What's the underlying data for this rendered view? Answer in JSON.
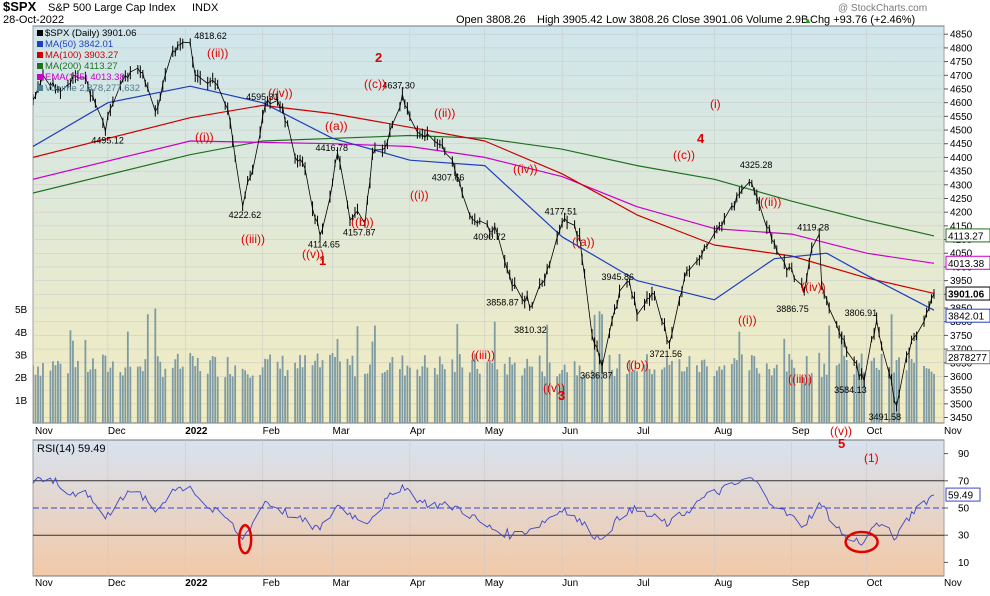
{
  "header": {
    "symbol": "$SPX",
    "name": "S&P 500 Large Cap Index",
    "exchange": "INDX",
    "date": "28-Oct-2022",
    "open": "Open 3808.26",
    "high": "High 3905.42",
    "low": "Low 3808.26",
    "close": "Close 3901.06",
    "volume": "Volume 2.9B",
    "chg": "Chg +93.76 (+2.46%)",
    "chg_arrow": "▲",
    "watermark": "@ StockCharts.com"
  },
  "legend": [
    {
      "text": "$SPX (Daily) 3901.06",
      "color": "#000000"
    },
    {
      "text": "MA(50) 3842.01",
      "color": "#1f3fbf"
    },
    {
      "text": "MA(100) 3903.27",
      "color": "#cc0000"
    },
    {
      "text": "MA(200) 4113.27",
      "color": "#207020"
    },
    {
      "text": "EMA(165) 4013.38",
      "color": "#cc00cc"
    },
    {
      "text": "Volume 2,878,277,632",
      "color": "#4a7f8f"
    }
  ],
  "rsi_legend": "RSI(14) 59.49",
  "colors": {
    "price_bg_top": "#cfe6ec",
    "price_bg_bottom": "#f3ecc0",
    "rsi_bg_top": "#d8e2ef",
    "rsi_bg_bottom": "#f2c9a8",
    "price": "#000000",
    "ma50": "#1f3fbf",
    "ma100": "#cc0000",
    "ma200": "#207020",
    "ema165": "#cc00cc",
    "volume": "#7e9aa3",
    "rsi": "#3c46c8",
    "wave": "#e00000"
  },
  "x_axis": {
    "labels": [
      "Nov",
      "Dec",
      "2022",
      "Feb",
      "Mar",
      "Apr",
      "May",
      "Jun",
      "Jul",
      "Aug",
      "Sep",
      "Oct",
      "Nov"
    ],
    "bold": [
      false,
      false,
      true,
      false,
      false,
      false,
      false,
      false,
      false,
      false,
      false,
      false,
      false
    ]
  },
  "chart_data": {
    "type": "line",
    "title": "$SPX S&P 500 Large Cap Index INDX (Daily)",
    "price_axis": {
      "ticks": [
        "4850",
        "4800",
        "4750",
        "4700",
        "4650",
        "4600",
        "4550",
        "4500",
        "4450",
        "4400",
        "4350",
        "4300",
        "4250",
        "4200",
        "4150",
        "4100",
        "4050",
        "4000",
        "3950",
        "3900",
        "3850",
        "3800",
        "3750",
        "3700",
        "3650",
        "3600",
        "3550",
        "3500",
        "3450"
      ],
      "ylim": [
        3430,
        4880
      ]
    },
    "volume_axis": {
      "ticks": [
        "5B",
        "4B",
        "3B",
        "2B",
        "1B"
      ],
      "ylim": [
        0,
        6
      ]
    },
    "rsi_axis": {
      "ticks": [
        "90",
        "70",
        "50",
        "30",
        "10"
      ],
      "ylim": [
        0,
        100
      ],
      "levels": [
        70,
        50,
        30
      ]
    },
    "price_path": [
      [
        "2021-11-01",
        4610
      ],
      [
        "2021-11-05",
        4700
      ],
      [
        "2021-11-11",
        4650
      ],
      [
        "2021-11-18",
        4700
      ],
      [
        "2021-11-22",
        4690
      ],
      [
        "2021-11-26",
        4595
      ],
      [
        "2021-11-30",
        4495.12
      ],
      [
        "2021-12-02",
        4577
      ],
      [
        "2021-12-07",
        4686
      ],
      [
        "2021-12-10",
        4712
      ],
      [
        "2021-12-15",
        4709
      ],
      [
        "2021-12-20",
        4568
      ],
      [
        "2021-12-27",
        4791
      ],
      [
        "2022-01-03",
        4818.62
      ],
      [
        "2022-01-05",
        4700
      ],
      [
        "2022-01-10",
        4670
      ],
      [
        "2022-01-14",
        4662
      ],
      [
        "2022-01-18",
        4577
      ],
      [
        "2022-01-21",
        4398
      ],
      [
        "2022-01-24",
        4222.62
      ],
      [
        "2022-01-27",
        4326
      ],
      [
        "2022-02-02",
        4589
      ],
      [
        "2022-02-04",
        4595.31
      ],
      [
        "2022-02-09",
        4587
      ],
      [
        "2022-02-14",
        4401
      ],
      [
        "2022-02-17",
        4380
      ],
      [
        "2022-02-24",
        4114.65
      ],
      [
        "2022-03-01",
        4306
      ],
      [
        "2022-03-03",
        4416.78
      ],
      [
        "2022-03-08",
        4170
      ],
      [
        "2022-03-11",
        4204
      ],
      [
        "2022-03-14",
        4157.87
      ],
      [
        "2022-03-17",
        4411
      ],
      [
        "2022-03-23",
        4456
      ],
      [
        "2022-03-29",
        4631
      ],
      [
        "2022-04-01",
        4545
      ],
      [
        "2022-04-06",
        4481
      ],
      [
        "2022-04-13",
        4446
      ],
      [
        "2022-04-18",
        4391
      ],
      [
        "2022-04-21",
        4307.66
      ],
      [
        "2022-04-26",
        4175
      ],
      [
        "2022-05-02",
        4155
      ],
      [
        "2022-05-06",
        4123
      ],
      [
        "2022-05-12",
        3930
      ],
      [
        "2022-05-20",
        3858.87
      ],
      [
        "2022-05-24",
        3941
      ],
      [
        "2022-05-31",
        4132
      ],
      [
        "2022-06-02",
        4177.51
      ],
      [
        "2022-06-08",
        4115
      ],
      [
        "2022-06-13",
        3749
      ],
      [
        "2022-06-16",
        3666
      ],
      [
        "2022-06-17",
        3636.87
      ],
      [
        "2022-06-24",
        3911
      ],
      [
        "2022-06-28",
        3945.86
      ],
      [
        "2022-07-01",
        3825
      ],
      [
        "2022-07-08",
        3899
      ],
      [
        "2022-07-14",
        3721.56
      ],
      [
        "2022-07-20",
        3959
      ],
      [
        "2022-07-28",
        4072
      ],
      [
        "2022-08-04",
        4151
      ],
      [
        "2022-08-12",
        4280
      ],
      [
        "2022-08-16",
        4305.2
      ],
      [
        "2022-08-19",
        4228
      ],
      [
        "2022-08-26",
        4057
      ],
      [
        "2022-09-06",
        3908
      ],
      [
        "2022-09-09",
        4067
      ],
      [
        "2022-09-12",
        4119.28
      ],
      [
        "2022-09-13",
        3932
      ],
      [
        "2022-09-23",
        3693
      ],
      [
        "2022-09-30",
        3584.13
      ],
      [
        "2022-10-05",
        3806.91
      ],
      [
        "2022-10-10",
        3612
      ],
      [
        "2022-10-13",
        3491.58
      ],
      [
        "2022-10-17",
        3677
      ],
      [
        "2022-10-21",
        3752
      ],
      [
        "2022-10-28",
        3901.06
      ]
    ],
    "ma50": [
      [
        "2021-11-01",
        4440
      ],
      [
        "2021-12-01",
        4600
      ],
      [
        "2022-01-03",
        4660
      ],
      [
        "2022-02-01",
        4600
      ],
      [
        "2022-03-01",
        4470
      ],
      [
        "2022-04-01",
        4390
      ],
      [
        "2022-05-01",
        4370
      ],
      [
        "2022-06-01",
        4110
      ],
      [
        "2022-07-01",
        3950
      ],
      [
        "2022-08-01",
        3880
      ],
      [
        "2022-08-25",
        4030
      ],
      [
        "2022-09-15",
        4050
      ],
      [
        "2022-10-01",
        3970
      ],
      [
        "2022-10-28",
        3842.01
      ]
    ],
    "ma100": [
      [
        "2021-11-01",
        4400
      ],
      [
        "2022-01-03",
        4545
      ],
      [
        "2022-02-01",
        4590
      ],
      [
        "2022-03-01",
        4560
      ],
      [
        "2022-04-01",
        4510
      ],
      [
        "2022-05-01",
        4460
      ],
      [
        "2022-06-01",
        4340
      ],
      [
        "2022-07-01",
        4190
      ],
      [
        "2022-08-01",
        4080
      ],
      [
        "2022-09-01",
        4040
      ],
      [
        "2022-10-01",
        3960
      ],
      [
        "2022-10-28",
        3903.27
      ]
    ],
    "ma200": [
      [
        "2021-11-01",
        4270
      ],
      [
        "2022-01-03",
        4410
      ],
      [
        "2022-02-01",
        4460
      ],
      [
        "2022-04-01",
        4480
      ],
      [
        "2022-05-01",
        4470
      ],
      [
        "2022-06-01",
        4430
      ],
      [
        "2022-07-01",
        4370
      ],
      [
        "2022-08-01",
        4320
      ],
      [
        "2022-09-01",
        4240
      ],
      [
        "2022-10-01",
        4170
      ],
      [
        "2022-10-28",
        4113.27
      ]
    ],
    "ema165": [
      [
        "2021-11-01",
        4320
      ],
      [
        "2022-01-03",
        4460
      ],
      [
        "2022-03-01",
        4450
      ],
      [
        "2022-04-01",
        4440
      ],
      [
        "2022-05-01",
        4400
      ],
      [
        "2022-06-01",
        4330
      ],
      [
        "2022-07-01",
        4220
      ],
      [
        "2022-08-01",
        4140
      ],
      [
        "2022-09-01",
        4120
      ],
      [
        "2022-10-01",
        4050
      ],
      [
        "2022-10-28",
        4013.38
      ]
    ],
    "rsi_path": [
      [
        "2021-11-01",
        68
      ],
      [
        "2021-11-08",
        72
      ],
      [
        "2021-11-15",
        60
      ],
      [
        "2021-11-22",
        63
      ],
      [
        "2021-11-30",
        42
      ],
      [
        "2021-12-06",
        58
      ],
      [
        "2021-12-13",
        62
      ],
      [
        "2021-12-20",
        47
      ],
      [
        "2021-12-27",
        64
      ],
      [
        "2022-01-03",
        66
      ],
      [
        "2022-01-10",
        50
      ],
      [
        "2022-01-18",
        42
      ],
      [
        "2022-01-24",
        27
      ],
      [
        "2022-02-02",
        55
      ],
      [
        "2022-02-14",
        43
      ],
      [
        "2022-02-24",
        34
      ],
      [
        "2022-03-03",
        52
      ],
      [
        "2022-03-14",
        39
      ],
      [
        "2022-03-29",
        67
      ],
      [
        "2022-04-06",
        54
      ],
      [
        "2022-04-21",
        50
      ],
      [
        "2022-05-02",
        36
      ],
      [
        "2022-05-12",
        30
      ],
      [
        "2022-05-20",
        35
      ],
      [
        "2022-06-02",
        50
      ],
      [
        "2022-06-16",
        27
      ],
      [
        "2022-06-28",
        50
      ],
      [
        "2022-07-14",
        38
      ],
      [
        "2022-07-28",
        58
      ],
      [
        "2022-08-16",
        72
      ],
      [
        "2022-08-26",
        50
      ],
      [
        "2022-09-06",
        37
      ],
      [
        "2022-09-12",
        54
      ],
      [
        "2022-09-23",
        27
      ],
      [
        "2022-09-30",
        25
      ],
      [
        "2022-10-05",
        39
      ],
      [
        "2022-10-13",
        28
      ],
      [
        "2022-10-21",
        51
      ],
      [
        "2022-10-28",
        59.49
      ]
    ],
    "volume_bars": "daily volume in billions (approx. 1.9–3.8B, spikes to ~4.8B in Dec and Jun)",
    "volume_last": 2878277,
    "price_labels": [
      [
        "2022-01-03",
        "4818.62"
      ],
      [
        "2021-11-30",
        "4495.12"
      ],
      [
        "2022-01-24",
        "4222.62"
      ],
      [
        "2022-02-04",
        "4595.31"
      ],
      [
        "2022-02-24",
        "4114.65"
      ],
      [
        "2022-03-03",
        "4416.78"
      ],
      [
        "2022-03-14",
        "4157.87"
      ],
      [
        "2022-03-29",
        "4637.30"
      ],
      [
        "2022-04-21",
        "4307.66"
      ],
      [
        "2022-05-06",
        "4090.72"
      ],
      [
        "2022-05-12",
        "3858.87"
      ],
      [
        "2022-05-20",
        "3810.32"
      ],
      [
        "2022-06-02",
        "4177.51"
      ],
      [
        "2022-06-17",
        "3636.87"
      ],
      [
        "2022-06-28",
        "3945.86"
      ],
      [
        "2022-07-14",
        "3721.56"
      ],
      [
        "2022-08-16",
        "4325.28"
      ],
      [
        "2022-09-12",
        "4119.28"
      ],
      [
        "2022-09-06",
        "3886.75"
      ],
      [
        "2022-10-05",
        "3806.91"
      ],
      [
        "2022-09-30",
        "3584.13"
      ],
      [
        "2022-10-13",
        "3491.58"
      ]
    ],
    "wave_labels": [
      "((ii))",
      "((i))",
      "((iii))",
      "((iv))",
      "((v))",
      "1",
      "((a))",
      "((b))",
      "((c))",
      "2",
      "((i))",
      "((ii))",
      "((iii))",
      "((iv))",
      "((v))",
      "3",
      "((a))",
      "((b))",
      "((c))",
      "4",
      "((i))",
      "((ii))",
      "((iii))",
      "((iv))",
      "((v))",
      "5",
      "(1)",
      "(i)"
    ],
    "last_price_tags": [
      "3901.06",
      "3842.01",
      "4113.27",
      "4013.38"
    ],
    "last_volume_tag": "2878277",
    "last_rsi_tag": "59.49"
  }
}
